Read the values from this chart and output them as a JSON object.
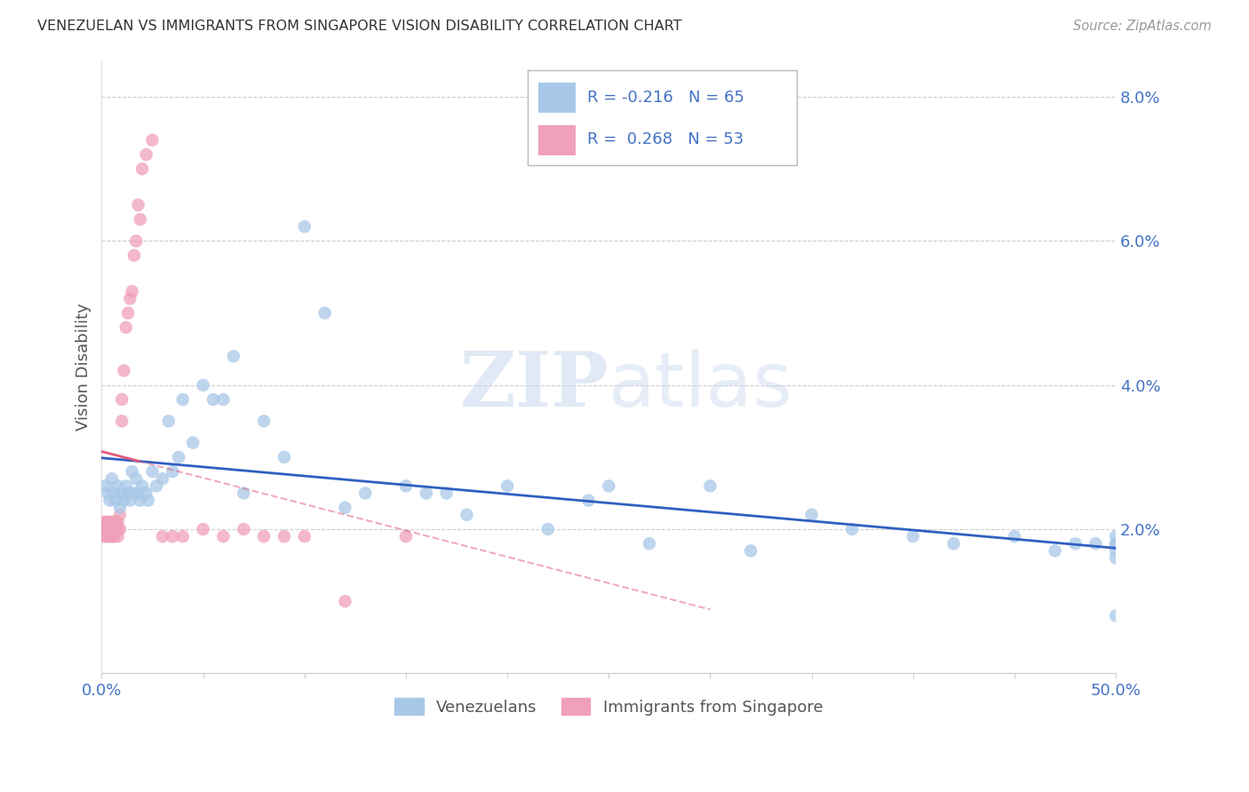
{
  "title": "VENEZUELAN VS IMMIGRANTS FROM SINGAPORE VISION DISABILITY CORRELATION CHART",
  "source": "Source: ZipAtlas.com",
  "ylabel": "Vision Disability",
  "legend_label_blue": "Venezuelans",
  "legend_label_pink": "Immigrants from Singapore",
  "R_blue": -0.216,
  "N_blue": 65,
  "R_pink": 0.268,
  "N_pink": 53,
  "xmin": 0.0,
  "xmax": 0.5,
  "ymin": 0.0,
  "ymax": 0.085,
  "yticks": [
    0.0,
    0.02,
    0.04,
    0.06,
    0.08
  ],
  "ytick_labels": [
    "",
    "2.0%",
    "4.0%",
    "6.0%",
    "8.0%"
  ],
  "xticks": [
    0.0,
    0.05,
    0.1,
    0.15,
    0.2,
    0.25,
    0.3,
    0.35,
    0.4,
    0.45,
    0.5
  ],
  "xtick_labels": [
    "0.0%",
    "",
    "",
    "",
    "",
    "",
    "",
    "",
    "",
    "",
    "50.0%"
  ],
  "color_blue": "#a8c8e8",
  "color_pink": "#f0a0b8",
  "color_blue_line": "#3060c0",
  "color_pink_line": "#e05878",
  "color_tick_label": "#4472c4",
  "background_color": "#ffffff",
  "watermark_zip": "ZIP",
  "watermark_atlas": "atlas",
  "blue_x": [
    0.002,
    0.003,
    0.004,
    0.005,
    0.006,
    0.007,
    0.008,
    0.009,
    0.01,
    0.011,
    0.012,
    0.013,
    0.014,
    0.015,
    0.016,
    0.017,
    0.018,
    0.019,
    0.02,
    0.022,
    0.023,
    0.025,
    0.027,
    0.03,
    0.033,
    0.035,
    0.038,
    0.04,
    0.045,
    0.05,
    0.055,
    0.06,
    0.065,
    0.07,
    0.08,
    0.09,
    0.1,
    0.11,
    0.12,
    0.13,
    0.15,
    0.16,
    0.17,
    0.18,
    0.2,
    0.22,
    0.24,
    0.25,
    0.27,
    0.3,
    0.32,
    0.35,
    0.37,
    0.4,
    0.42,
    0.45,
    0.47,
    0.48,
    0.49,
    0.5,
    0.5,
    0.5,
    0.5,
    0.5,
    0.5
  ],
  "blue_y": [
    0.026,
    0.025,
    0.024,
    0.027,
    0.025,
    0.024,
    0.026,
    0.023,
    0.025,
    0.024,
    0.026,
    0.025,
    0.024,
    0.028,
    0.025,
    0.027,
    0.025,
    0.024,
    0.026,
    0.025,
    0.024,
    0.028,
    0.026,
    0.027,
    0.035,
    0.028,
    0.03,
    0.038,
    0.032,
    0.04,
    0.038,
    0.038,
    0.044,
    0.025,
    0.035,
    0.03,
    0.062,
    0.05,
    0.023,
    0.025,
    0.026,
    0.025,
    0.025,
    0.022,
    0.026,
    0.02,
    0.024,
    0.026,
    0.018,
    0.026,
    0.017,
    0.022,
    0.02,
    0.019,
    0.018,
    0.019,
    0.017,
    0.018,
    0.018,
    0.018,
    0.019,
    0.018,
    0.017,
    0.016,
    0.008
  ],
  "pink_x": [
    0.001,
    0.001,
    0.002,
    0.002,
    0.002,
    0.003,
    0.003,
    0.003,
    0.003,
    0.004,
    0.004,
    0.004,
    0.005,
    0.005,
    0.005,
    0.005,
    0.006,
    0.006,
    0.006,
    0.006,
    0.007,
    0.007,
    0.007,
    0.008,
    0.008,
    0.008,
    0.009,
    0.009,
    0.01,
    0.01,
    0.011,
    0.012,
    0.013,
    0.014,
    0.015,
    0.016,
    0.017,
    0.018,
    0.019,
    0.02,
    0.022,
    0.025,
    0.03,
    0.035,
    0.04,
    0.05,
    0.06,
    0.07,
    0.08,
    0.09,
    0.1,
    0.12,
    0.15
  ],
  "pink_y": [
    0.019,
    0.021,
    0.02,
    0.019,
    0.021,
    0.02,
    0.021,
    0.019,
    0.02,
    0.021,
    0.019,
    0.02,
    0.019,
    0.021,
    0.02,
    0.021,
    0.019,
    0.021,
    0.02,
    0.019,
    0.02,
    0.021,
    0.02,
    0.021,
    0.019,
    0.02,
    0.02,
    0.022,
    0.035,
    0.038,
    0.042,
    0.048,
    0.05,
    0.052,
    0.053,
    0.058,
    0.06,
    0.065,
    0.063,
    0.07,
    0.072,
    0.074,
    0.019,
    0.019,
    0.019,
    0.02,
    0.019,
    0.02,
    0.019,
    0.019,
    0.019,
    0.01,
    0.019
  ]
}
